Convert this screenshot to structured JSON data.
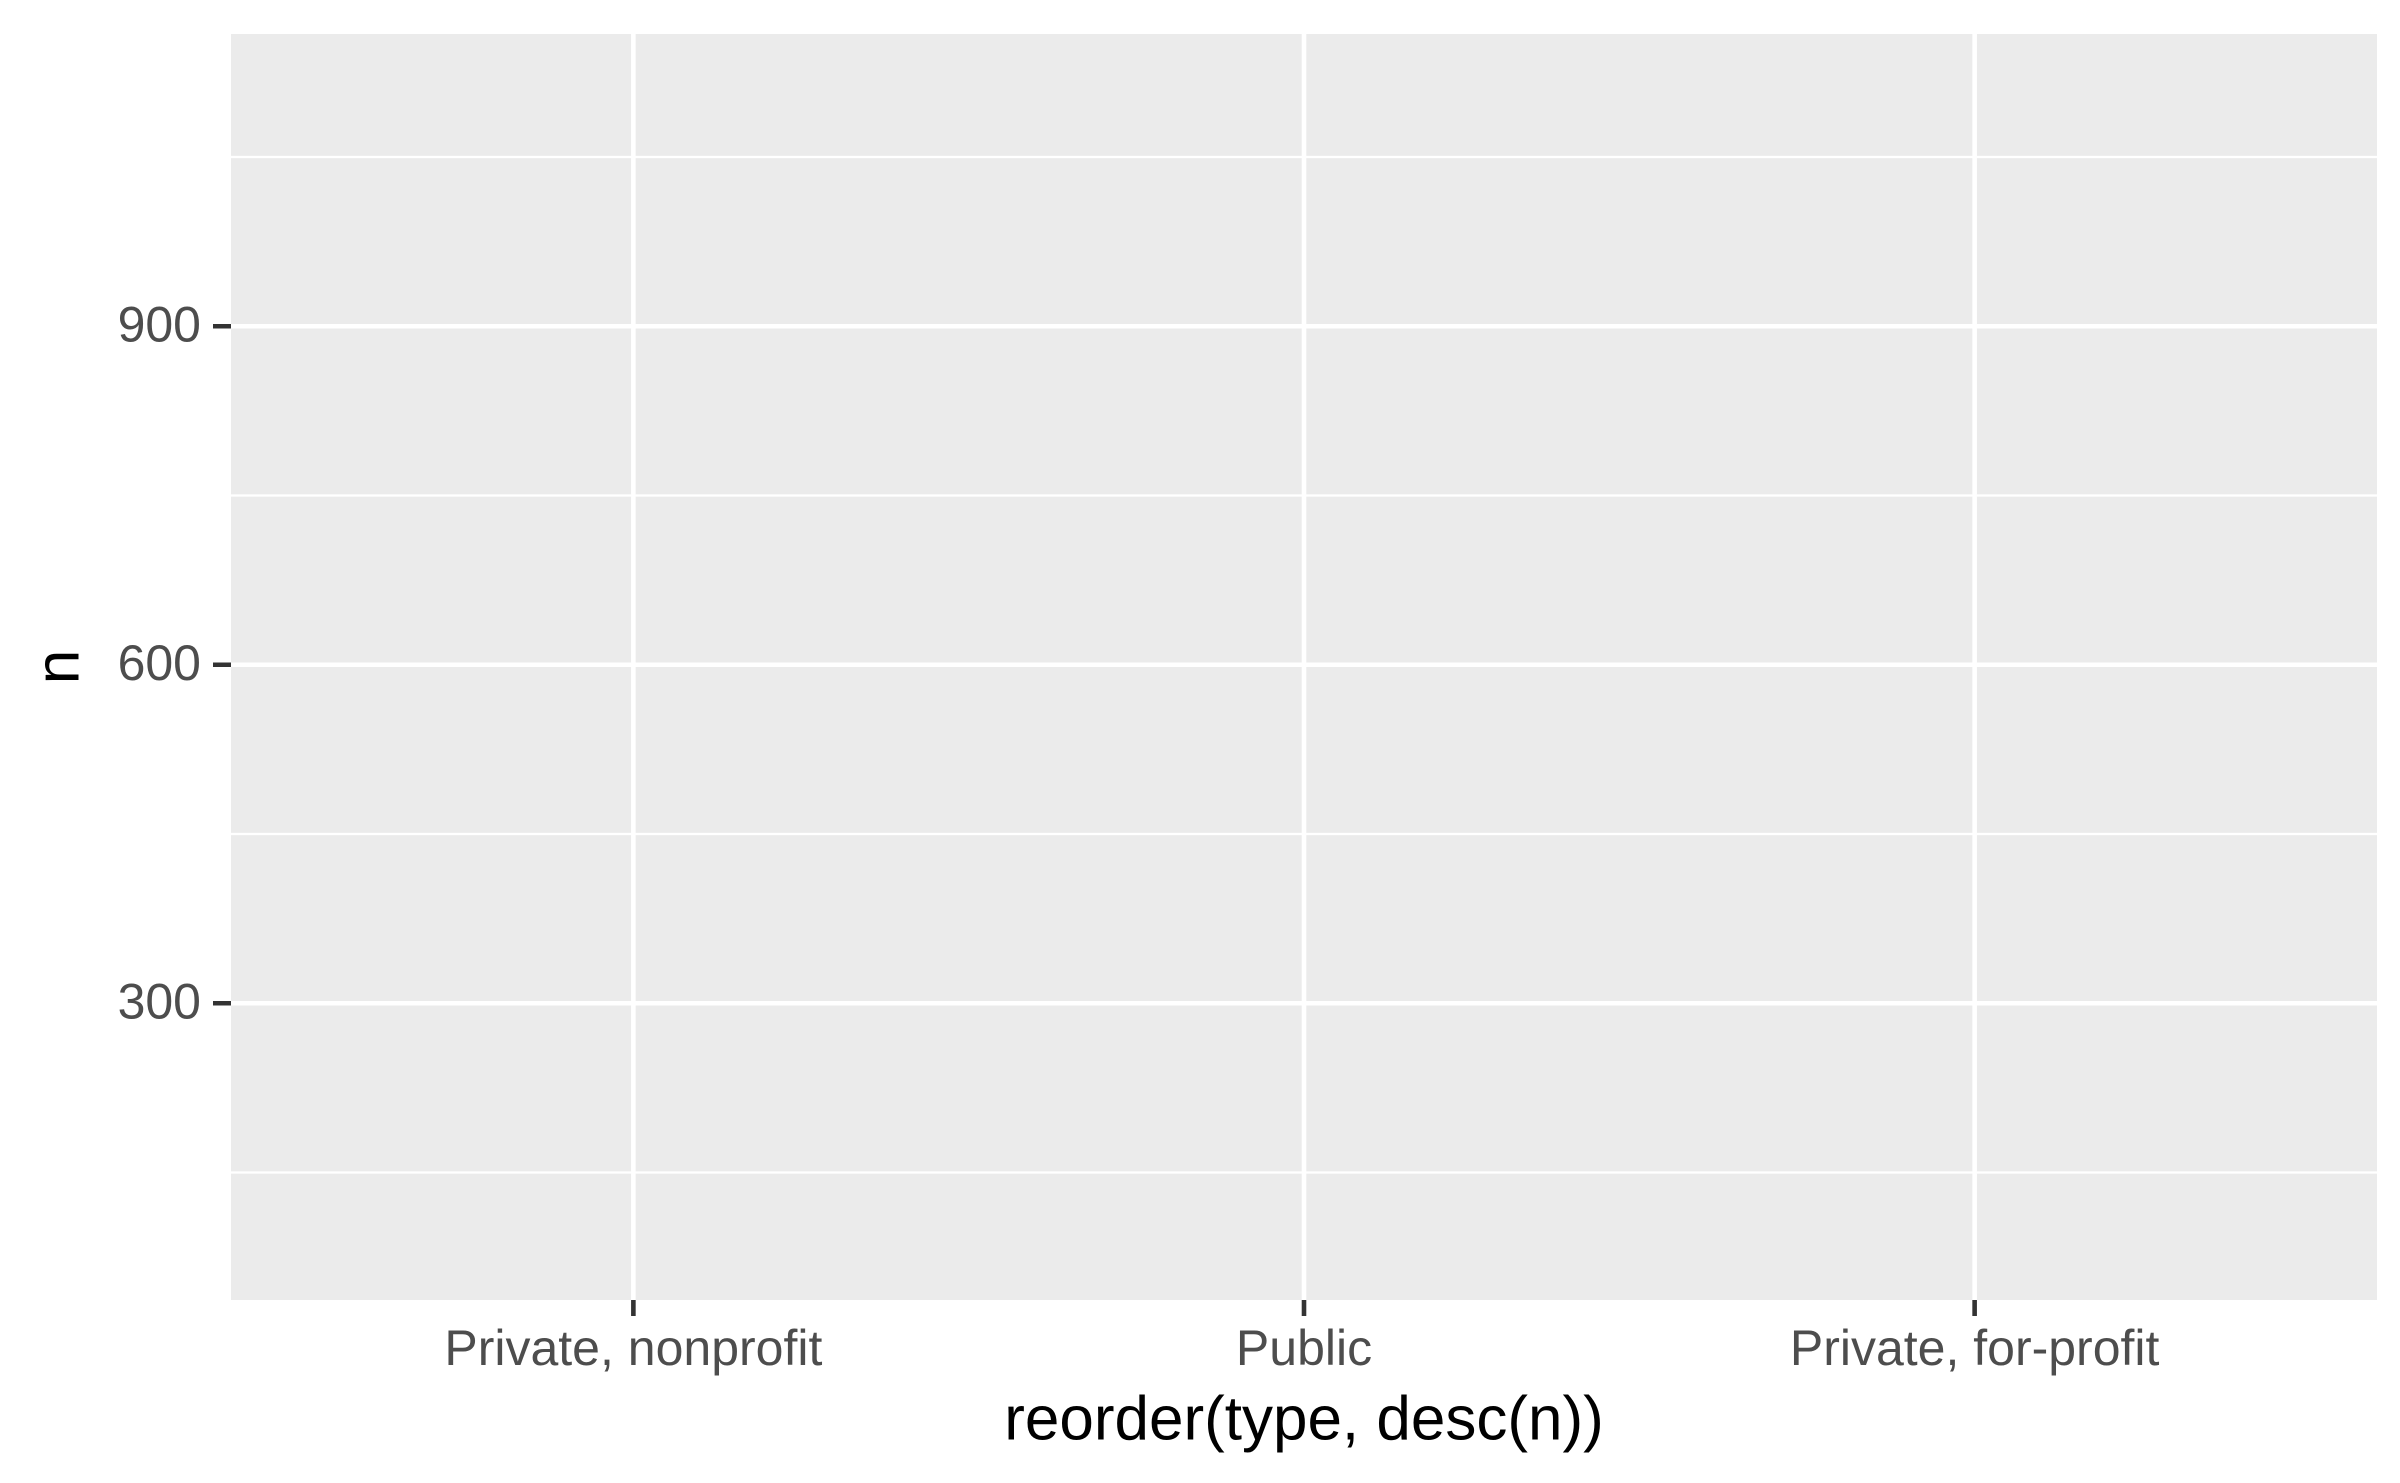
{
  "chart_data": {
    "type": "bar",
    "x_label": "reorder(type, desc(n))",
    "y_label": "n",
    "categories": [
      "Private, nonprofit",
      "Public",
      "Private, for-profit"
    ],
    "ylim": [
      37,
      1159
    ],
    "yticks": [
      300,
      600,
      900
    ],
    "minor_yticks": [
      150,
      450,
      750,
      1050
    ],
    "grid": true
  }
}
